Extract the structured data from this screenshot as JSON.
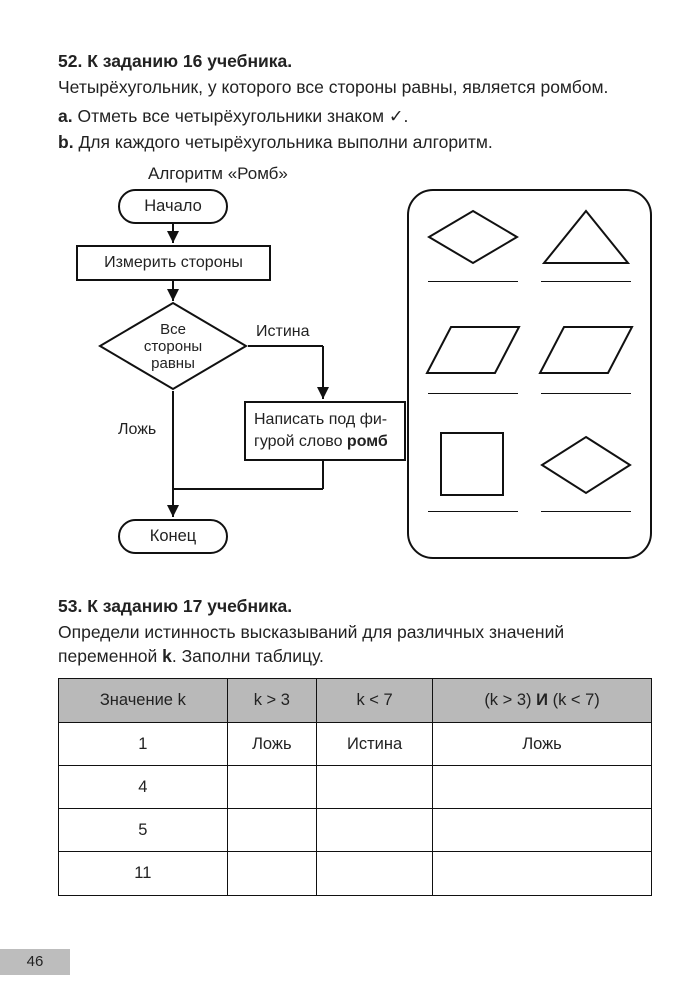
{
  "page_number": "46",
  "task52": {
    "heading": "52. К заданию 16 учебника.",
    "definition": "Четырёхугольник, у которого все стороны равны, является ромбом.",
    "a_letter": "a.",
    "a_text": "Отметь все четырёхугольники знаком ✓.",
    "b_letter": "b.",
    "b_text": "Для каждого четырёхугольника выполни алгоритм.",
    "algo_title": "Алгоритм «Ромб»",
    "flow": {
      "start": "Начало",
      "measure": "Измерить стороны",
      "decision_l1": "Все",
      "decision_l2": "стороны",
      "decision_l3": "равны",
      "true_label": "Истина",
      "false_label": "Ложь",
      "write_l1": "Написать под фи-",
      "write_l2_a": "гурой слово ",
      "write_l2_b": "ромб",
      "end": "Конец"
    },
    "shapes": {
      "stroke": "#111111",
      "stroke_width": 2
    }
  },
  "task53": {
    "heading": "53. К заданию 17 учебника.",
    "intro_a": "Определи истинность высказываний для различных значений переменной ",
    "intro_k": "k",
    "intro_b": ". Заполни таблицу.",
    "table": {
      "header_bg": "#b9b9b9",
      "columns": [
        "Значение k",
        "k > 3",
        "k < 7",
        "(k > 3) И (k < 7)"
      ],
      "rows": [
        [
          "1",
          "Ложь",
          "Истина",
          "Ложь"
        ],
        [
          "4",
          "",
          "",
          ""
        ],
        [
          "5",
          "",
          "",
          ""
        ],
        [
          "11",
          "",
          "",
          ""
        ]
      ]
    }
  },
  "colors": {
    "text": "#222222",
    "border": "#111111",
    "page_bg": "#ffffff"
  }
}
